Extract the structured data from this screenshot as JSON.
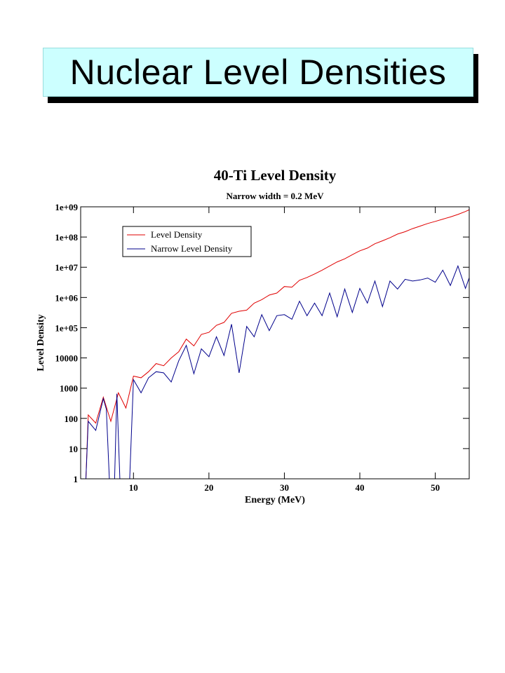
{
  "slide": {
    "title": "Nuclear Level Densities"
  },
  "chart_data": {
    "type": "line",
    "title": "40-Ti Level Density",
    "subtitle": "Narrow width = 0.2 MeV",
    "xlabel": "Energy (MeV)",
    "ylabel": "Level Density",
    "xlim": [
      3,
      54.5
    ],
    "ylim": [
      1,
      1000000000
    ],
    "yscale": "log",
    "grid": false,
    "legend_placement": "top-left",
    "x_ticks": [
      10,
      20,
      30,
      40,
      50
    ],
    "y_ticks": [
      {
        "value": 1,
        "label": "1"
      },
      {
        "value": 10,
        "label": "10"
      },
      {
        "value": 100,
        "label": "100"
      },
      {
        "value": 1000,
        "label": "1000"
      },
      {
        "value": 10000,
        "label": "10000"
      },
      {
        "value": 100000,
        "label": "1e+05"
      },
      {
        "value": 1000000,
        "label": "1e+06"
      },
      {
        "value": 10000000,
        "label": "1e+07"
      },
      {
        "value": 100000000,
        "label": "1e+08"
      },
      {
        "value": 1000000000,
        "label": "1e+09"
      }
    ],
    "series": [
      {
        "name": "Level Density",
        "color": "#e00000",
        "x": [
          3,
          3.7,
          4,
          5,
          6,
          7,
          8,
          9,
          10,
          11,
          12,
          13,
          14,
          15,
          16,
          17,
          18,
          19,
          20,
          21,
          22,
          23,
          24,
          25,
          26,
          27,
          28,
          29,
          30,
          31,
          32,
          33,
          34,
          35,
          36,
          37,
          38,
          39,
          40,
          41,
          42,
          43,
          44,
          45,
          46,
          47,
          48,
          49,
          50,
          51,
          52,
          53,
          54,
          54.5
        ],
        "y": [
          1,
          1,
          130,
          70,
          500,
          80,
          700,
          220,
          2500,
          2200,
          3500,
          6500,
          5500,
          10000,
          16000,
          42000,
          25000,
          60000,
          70000,
          120000,
          150000,
          300000,
          350000,
          380000,
          650000,
          850000,
          1200000,
          1400000,
          2300000,
          2200000,
          3700000,
          4600000,
          6000000,
          8000000,
          11000000,
          15000000,
          19000000,
          26000000,
          35000000,
          43000000,
          60000000,
          75000000,
          95000000,
          125000000,
          150000000,
          190000000,
          230000000,
          280000000,
          330000000,
          390000000,
          460000000,
          560000000,
          700000000,
          800000000
        ]
      },
      {
        "name": "Narrow Level Density",
        "color": "#00008b",
        "x": [
          3,
          3.7,
          4,
          5,
          6,
          6.4,
          6.8,
          7.5,
          7.8,
          8.2,
          8.7,
          9.5,
          10,
          11,
          12,
          13,
          14,
          15,
          16,
          17,
          18,
          19,
          20,
          21,
          22,
          23,
          24,
          25,
          26,
          27,
          28,
          29,
          30,
          31,
          32,
          33,
          34,
          35,
          36,
          37,
          38,
          39,
          40,
          41,
          42,
          43,
          44,
          45,
          46,
          47,
          48,
          49,
          50,
          51,
          52,
          53,
          54,
          54.5
        ],
        "y": [
          1,
          1,
          80,
          40,
          450,
          200,
          1,
          1,
          650,
          1,
          1,
          1,
          1900,
          700,
          2200,
          3500,
          3200,
          1600,
          8000,
          26000,
          3000,
          20000,
          11000,
          50000,
          12000,
          130000,
          3200,
          110000,
          50000,
          270000,
          80000,
          250000,
          270000,
          190000,
          750000,
          250000,
          650000,
          250000,
          1400000,
          230000,
          1900000,
          320000,
          2000000,
          650000,
          3500000,
          500000,
          3500000,
          1900000,
          4000000,
          3500000,
          3800000,
          4400000,
          3200000,
          8000000,
          2500000,
          11000000,
          2000000,
          4500000
        ]
      }
    ]
  }
}
